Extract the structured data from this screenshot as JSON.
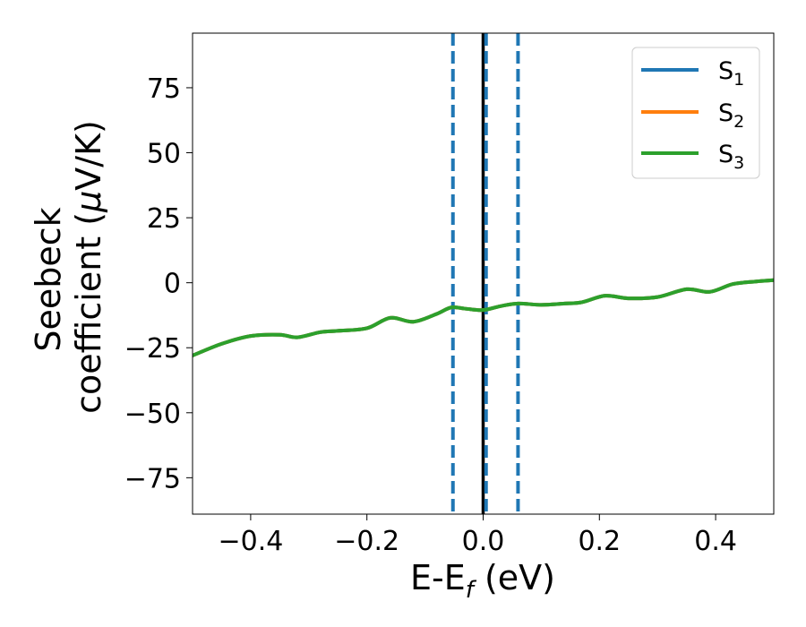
{
  "chart_data": {
    "type": "line",
    "xlabel": {
      "main": "E-E",
      "sub": "f",
      "unit": " (eV)"
    },
    "ylabel": {
      "line1": "Seebeck",
      "line2_pre": "coefficient  (",
      "mu": "μ",
      "line2_post": "V/K)"
    },
    "xlim": [
      -0.5,
      0.5
    ],
    "ylim": [
      -89,
      96
    ],
    "x_ticks": [
      -0.4,
      -0.2,
      0.0,
      0.2,
      0.4
    ],
    "x_tick_labels": [
      "−0.4",
      "−0.2",
      "0.0",
      "0.2",
      "0.4"
    ],
    "y_ticks": [
      75,
      50,
      25,
      0,
      -25,
      -50,
      -75
    ],
    "y_tick_labels": [
      "75",
      "50",
      "25",
      "0",
      "−25",
      "−50",
      "−75"
    ],
    "grid": false,
    "legend_position": "top-right",
    "vlines": [
      {
        "x": -0.052,
        "style": "dashed",
        "color": "#1f77b4"
      },
      {
        "x": 0.0,
        "style": "solid",
        "color": "#000000"
      },
      {
        "x": 0.005,
        "style": "dashed",
        "color": "#1f77b4"
      },
      {
        "x": 0.06,
        "style": "dashed",
        "color": "#1f77b4"
      }
    ],
    "x": [
      -0.5,
      -0.45,
      -0.4,
      -0.35,
      -0.32,
      -0.28,
      -0.25,
      -0.2,
      -0.16,
      -0.12,
      -0.08,
      -0.055,
      -0.03,
      0.0,
      0.03,
      0.06,
      0.1,
      0.14,
      0.17,
      0.21,
      0.25,
      0.3,
      0.35,
      0.39,
      0.43,
      0.47,
      0.5
    ],
    "series": [
      {
        "name": {
          "main": "S",
          "sub": "1"
        },
        "color": "#1f77b4",
        "values": [
          -28,
          -23.5,
          -20.5,
          -20,
          -21,
          -19,
          -18.5,
          -17.5,
          -13.5,
          -15,
          -12,
          -9.5,
          -10,
          -10.5,
          -9,
          -8,
          -8.5,
          -8,
          -7.5,
          -5,
          -6,
          -5.5,
          -2.5,
          -3.5,
          -0.5,
          0.5,
          1
        ]
      },
      {
        "name": {
          "main": "S",
          "sub": "2"
        },
        "color": "#ff7f0e",
        "values": [
          -28,
          -23.5,
          -20.5,
          -20,
          -21,
          -19,
          -18.5,
          -17.5,
          -13.5,
          -15,
          -12,
          -9.5,
          -10,
          -10.5,
          -9,
          -8,
          -8.5,
          -8,
          -7.5,
          -5,
          -6,
          -5.5,
          -2.5,
          -3.5,
          -0.5,
          0.5,
          1
        ]
      },
      {
        "name": {
          "main": "S",
          "sub": "3"
        },
        "color": "#2ca02c",
        "values": [
          -28,
          -23.5,
          -20.5,
          -20,
          -21,
          -19,
          -18.5,
          -17.5,
          -13.5,
          -15,
          -12,
          -9.5,
          -10,
          -10.5,
          -9,
          -8,
          -8.5,
          -8,
          -7.5,
          -5,
          -6,
          -5.5,
          -2.5,
          -3.5,
          -0.5,
          0.5,
          1
        ]
      }
    ]
  }
}
